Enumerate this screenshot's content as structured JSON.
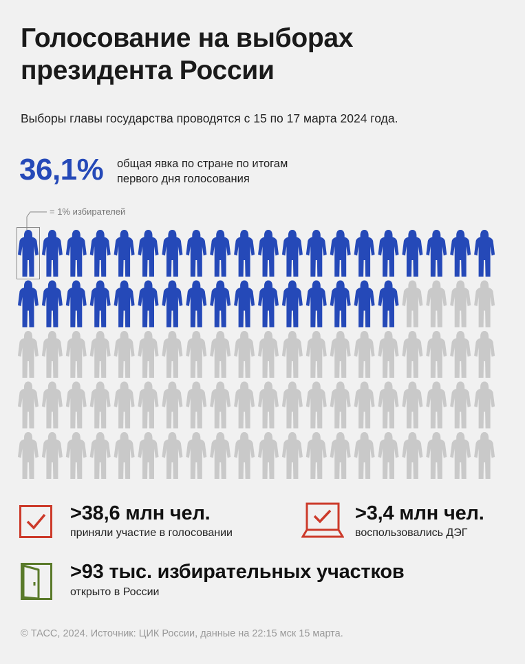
{
  "title": "Голосование на выборах президента России",
  "subtitle": "Выборы главы государства проводятся с 15 по 17 марта 2024 года.",
  "turnout": {
    "value": "36,1%",
    "label": "общая явка по стране по итогам первого дня голосования"
  },
  "legend": {
    "label": "= 1% избирателей"
  },
  "chart_data": {
    "type": "icon-array",
    "total_icons": 100,
    "highlighted_icons": 36,
    "value_percent": 36.1,
    "unit": "1% избирателей",
    "colors": {
      "highlighted": "#2549b8",
      "rest": "#c9c9c9"
    }
  },
  "stats": [
    {
      "icon": "checkbox-icon",
      "value": ">38,6 млн чел.",
      "label": "приняли участие в голосовании"
    },
    {
      "icon": "laptop-checkmark-icon",
      "value": ">3,4 млн чел.",
      "label": "воспользовались ДЭГ"
    },
    {
      "icon": "door-icon",
      "value": ">93 тыс. избирательных участков",
      "label": "открыто в России"
    }
  ],
  "colors": {
    "accent_blue": "#2549b8",
    "icon_red": "#cc3a2a",
    "icon_green": "#5a7a2a"
  },
  "footer": "© ТАСС, 2024. Источник: ЦИК России, данные на 22:15 мск 15 марта."
}
